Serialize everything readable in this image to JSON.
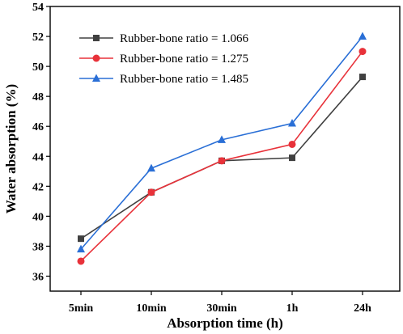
{
  "chart_data": {
    "type": "line",
    "categories": [
      "5min",
      "10min",
      "30min",
      "1h",
      "24h"
    ],
    "xlabel": "Absorption time (h)",
    "ylabel": "Water absorption (%)",
    "ylim": [
      35,
      54
    ],
    "yticks": [
      36,
      38,
      40,
      42,
      44,
      46,
      48,
      50,
      52,
      54
    ],
    "legend_position": "top-left",
    "grid": false,
    "series": [
      {
        "name": "Rubber-bone ratio = 1.066",
        "color": "#404040",
        "marker": "square",
        "values": [
          38.5,
          41.6,
          43.7,
          43.9,
          49.3
        ]
      },
      {
        "name": "Rubber-bone ratio = 1.275",
        "color": "#e8323a",
        "marker": "circle",
        "values": [
          37.0,
          41.6,
          43.7,
          44.8,
          51.0
        ]
      },
      {
        "name": "Rubber-bone ratio = 1.485",
        "color": "#2a6fd6",
        "marker": "triangle",
        "values": [
          37.8,
          43.2,
          45.1,
          46.2,
          52.0
        ]
      }
    ]
  }
}
